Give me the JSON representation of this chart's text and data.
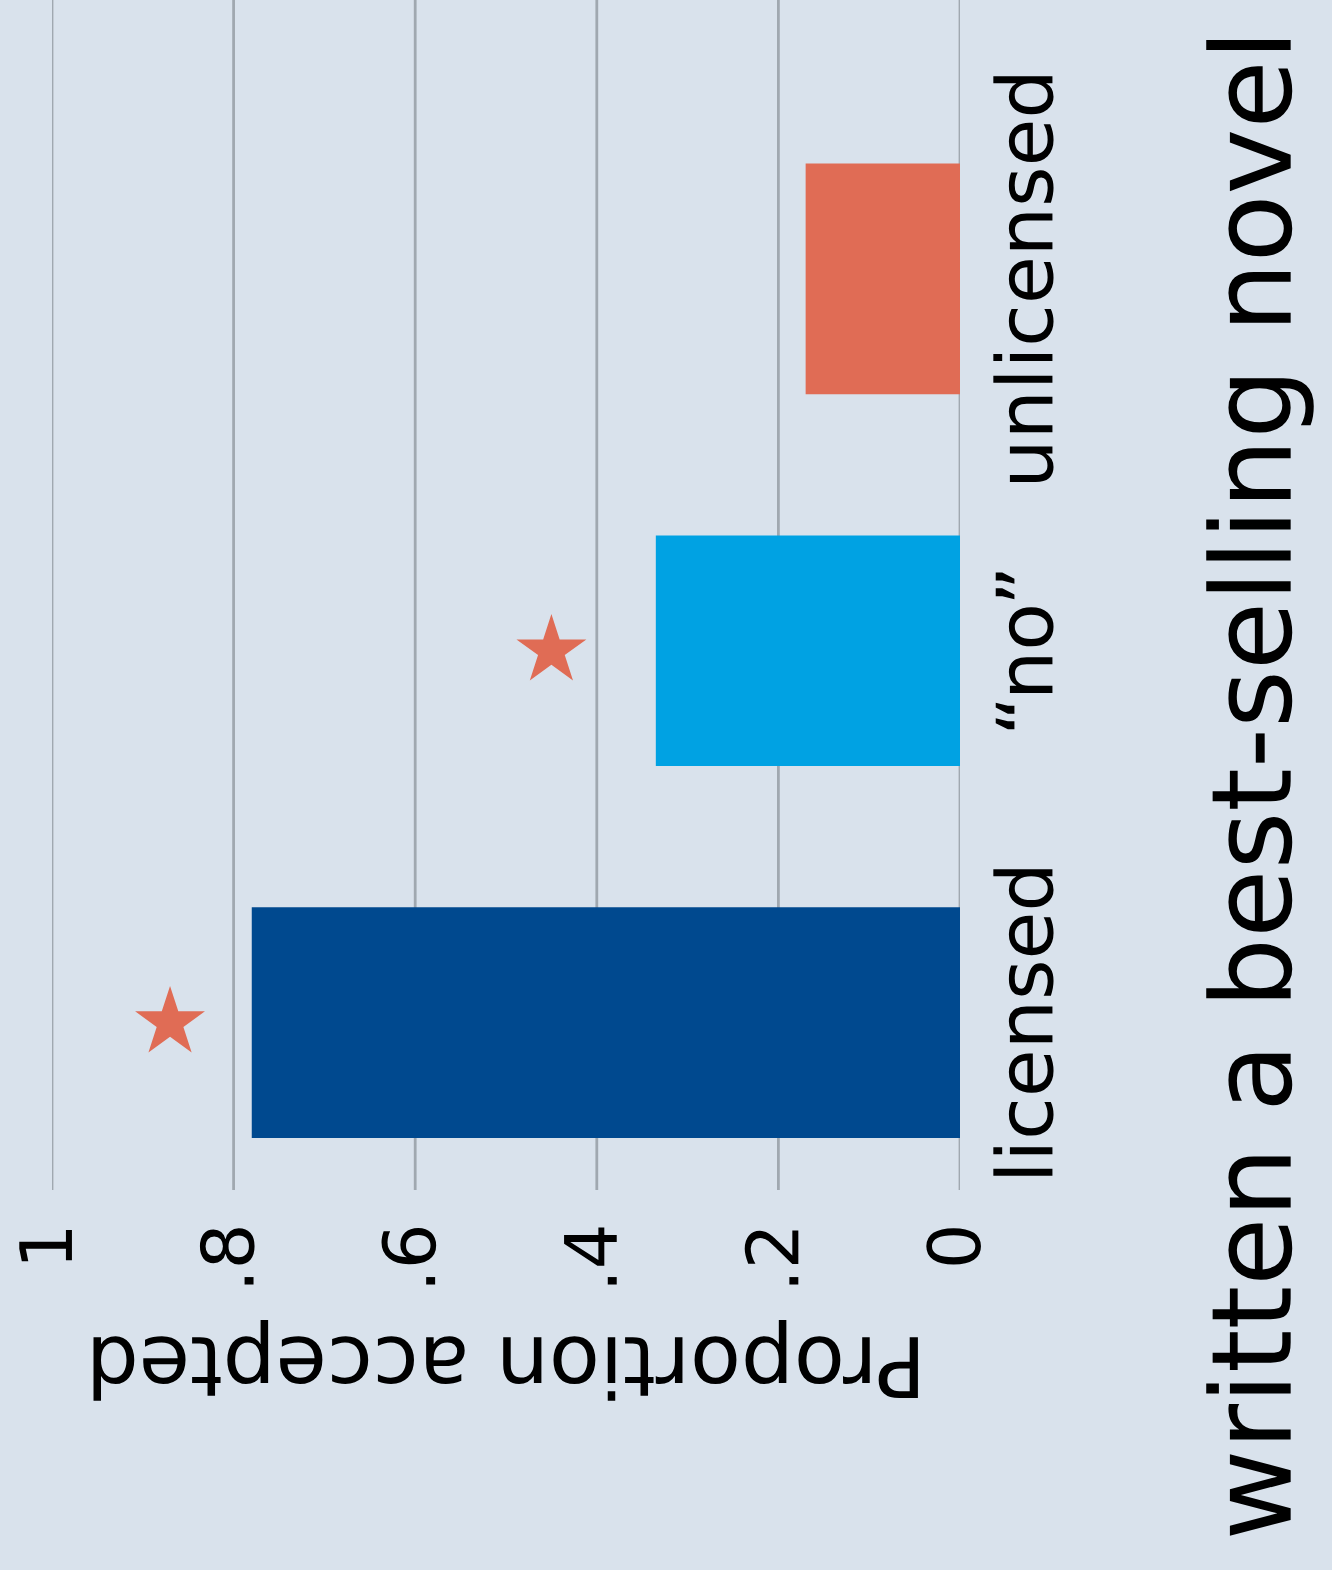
{
  "chart_data": {
    "type": "bar",
    "orientation": "horizontal",
    "title": "written a best-selling novel",
    "xlabel": "Proportion accepted",
    "categories": [
      "unlicensed",
      "“no”",
      "licensed"
    ],
    "series": [
      {
        "colors": [
          "#e06c55",
          "#00a2e3",
          "#00498f"
        ],
        "values": [
          0.17,
          0.335,
          0.78
        ]
      },
      {
        "type": "scatter",
        "color": "#e06c55",
        "marker": "star",
        "x": [
          "unlicensed",
          "“no”",
          "licensed"
        ],
        "values": [
          null,
          0.45,
          0.87
        ]
      }
    ],
    "xlim": [
      1,
      0
    ],
    "xticks": [
      {
        "value": 1,
        "label": "1"
      },
      {
        "value": 0.8,
        "label": ".8"
      },
      {
        "value": 0.6,
        "label": ".6"
      },
      {
        "value": 0.4,
        "label": ".4"
      },
      {
        "value": 0.2,
        "label": ".2"
      },
      {
        "value": 0,
        "label": "0"
      }
    ],
    "grid": "x"
  }
}
